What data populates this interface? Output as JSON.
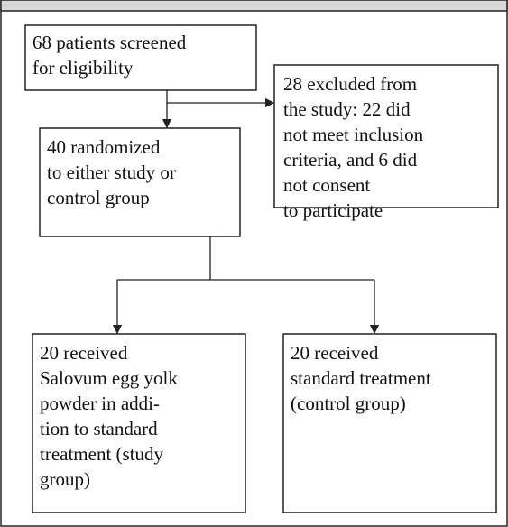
{
  "nodes": [
    {
      "lines": [
        "68 patients screened",
        "for eligibility"
      ]
    },
    {
      "lines": [
        "28 excluded from",
        "the study: 22 did",
        "not meet inclusion",
        "criteria, and 6 did",
        "not consent",
        "to participate"
      ]
    },
    {
      "lines": [
        "40 randomized",
        "to either study or",
        "control group"
      ]
    },
    {
      "lines": [
        "20 received",
        "Salovum egg yolk",
        "powder in addi-",
        "tion to standard",
        "treatment (study",
        "group)"
      ]
    },
    {
      "lines": [
        "20 received",
        "standard treatment",
        "(control group)"
      ]
    }
  ]
}
